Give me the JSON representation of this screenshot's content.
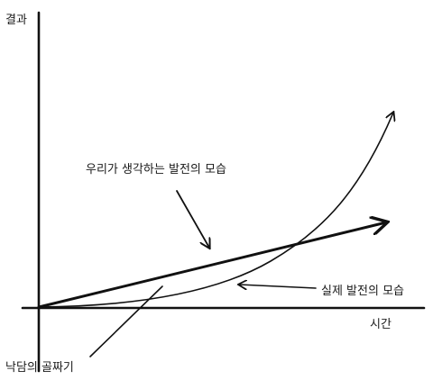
{
  "axes": {
    "y_label": "결과",
    "x_label": "시간"
  },
  "annotations": {
    "expected": "우리가 생각하는 발전의 모습",
    "actual": "실제 발전의 모습",
    "valley": "낙담의 골짜기"
  }
}
